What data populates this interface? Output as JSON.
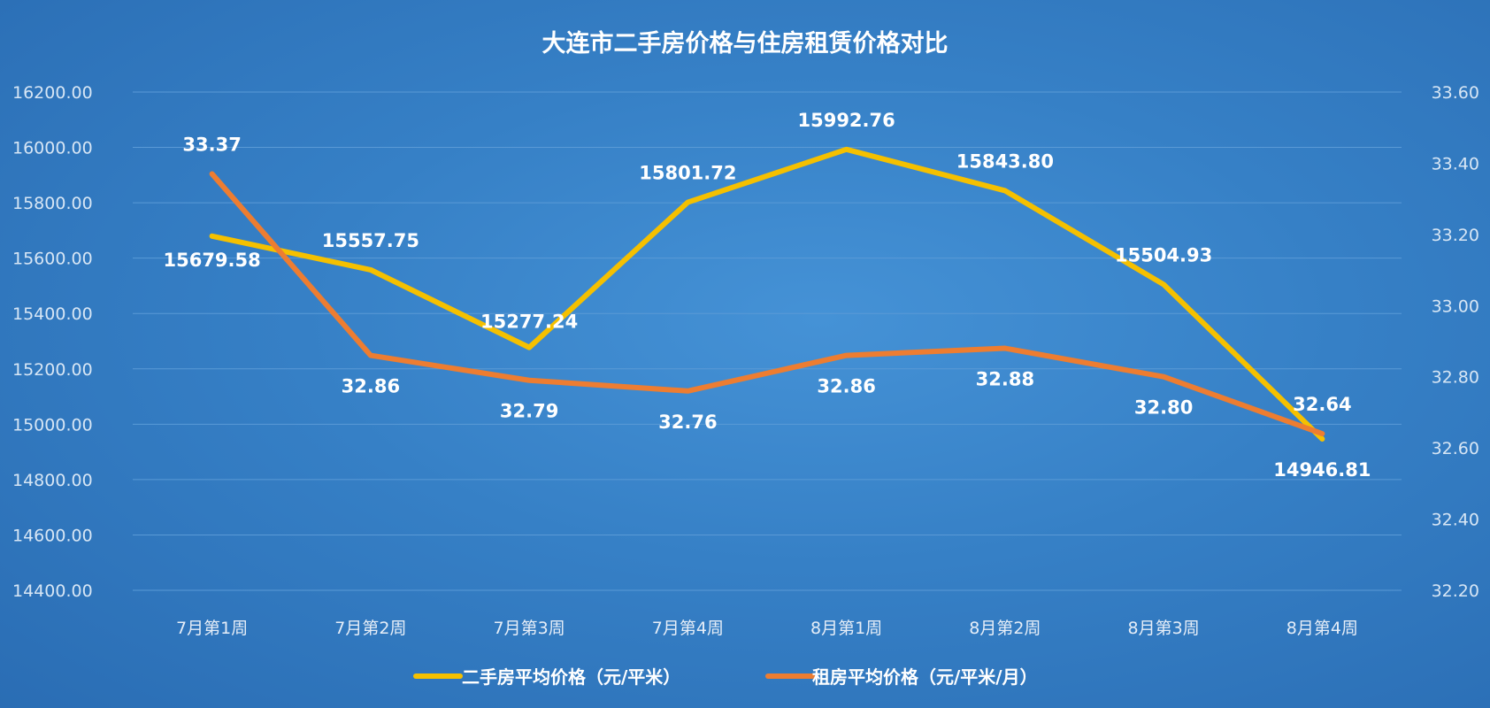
{
  "chart_data": {
    "type": "line",
    "title": "大连市二手房价格与住房租赁价格对比",
    "categories": [
      "7月第1周",
      "7月第2周",
      "7月第3周",
      "7月第4周",
      "8月第1周",
      "8月第2周",
      "8月第3周",
      "8月第4周"
    ],
    "y_left": {
      "range": [
        14400,
        16200
      ],
      "ticks": [
        "14400.00",
        "14600.00",
        "14800.00",
        "15000.00",
        "15200.00",
        "15400.00",
        "15600.00",
        "15800.00",
        "16000.00",
        "16200.00"
      ]
    },
    "y_right": {
      "range": [
        32.2,
        33.6
      ],
      "ticks": [
        "32.20",
        "32.40",
        "32.60",
        "32.80",
        "33.00",
        "33.20",
        "33.40",
        "33.60"
      ]
    },
    "grid": true,
    "legend_position": "bottom",
    "series": [
      {
        "name": "二手房平均价格（元/平米）",
        "axis": "left",
        "color": "#f5c000",
        "values": [
          15679.58,
          15557.75,
          15277.24,
          15801.72,
          15992.76,
          15843.8,
          15504.93,
          14946.81
        ],
        "labels": [
          "15679.58",
          "15557.75",
          "15277.24",
          "15801.72",
          "15992.76",
          "15843.80",
          "15504.93",
          "14946.81"
        ]
      },
      {
        "name": "租房平均价格（元/平米/月）",
        "axis": "right",
        "color": "#ed7d31",
        "values": [
          33.37,
          32.86,
          32.79,
          32.76,
          32.86,
          32.88,
          32.8,
          32.64
        ],
        "labels": [
          "33.37",
          "32.86",
          "32.79",
          "32.76",
          "32.86",
          "32.88",
          "32.80",
          "32.64"
        ]
      }
    ]
  }
}
